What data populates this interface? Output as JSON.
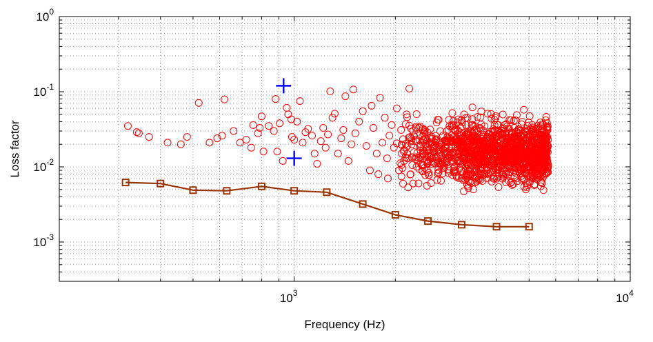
{
  "chart_data": {
    "type": "scatter",
    "title": "",
    "xlabel": "Frequency (Hz)",
    "ylabel": "Loss factor",
    "x_scale": "log",
    "y_scale": "log",
    "xlim": [
      200,
      10000
    ],
    "ylim": [
      0.0003,
      1
    ],
    "grid": "minor and major, dotted",
    "x_ticks": [
      {
        "value": 1000,
        "base": "10",
        "exp": "3"
      },
      {
        "value": 10000,
        "base": "10",
        "exp": "4"
      }
    ],
    "y_ticks": [
      {
        "value": 1,
        "base": "10",
        "exp": "0"
      },
      {
        "value": 0.1,
        "base": "10",
        "exp": "-1"
      },
      {
        "value": 0.01,
        "base": "10",
        "exp": "-2"
      },
      {
        "value": 0.001,
        "base": "10",
        "exp": "-3"
      }
    ],
    "colors": {
      "scatter": "#ff0000",
      "markers": "#0000ff",
      "line": "#993300"
    },
    "series": [
      {
        "kind": "line-square",
        "x": [
          315,
          400,
          500,
          630,
          800,
          1000,
          1250,
          1600,
          2000,
          2500,
          3150,
          4000,
          5000
        ],
        "y": [
          0.0062,
          0.006,
          0.0049,
          0.0048,
          0.0055,
          0.0048,
          0.0046,
          0.0032,
          0.0023,
          0.0019,
          0.0017,
          0.0016,
          0.0016
        ]
      },
      {
        "kind": "plus",
        "x": [
          930,
          1000
        ],
        "y": [
          0.12,
          0.013
        ]
      },
      {
        "kind": "circles",
        "x": [
          320,
          340,
          345,
          370,
          420,
          460,
          520,
          480,
          560,
          610,
          590,
          620,
          660,
          690,
          720,
          745,
          755,
          780,
          790,
          800,
          810,
          840,
          870,
          880,
          890,
          905,
          925,
          950,
          960,
          980,
          985,
          1000,
          1020,
          1040,
          1060,
          1080,
          1100,
          1130,
          1150,
          1170,
          1200,
          1220,
          1240,
          1260,
          1280,
          1300,
          1320,
          1350,
          1380,
          1400,
          1420,
          1450,
          1480,
          1500,
          1520,
          1560,
          1600,
          1640,
          1680,
          1700,
          1720,
          1760,
          1780,
          1800,
          1830,
          1860,
          1890,
          1900,
          1920,
          1950,
          1980,
          2020,
          2050,
          2080,
          2120,
          2160,
          2200,
          2230,
          2260,
          2300,
          2340,
          2380
        ],
        "y": [
          0.035,
          0.029,
          0.028,
          0.025,
          0.021,
          0.02,
          0.071,
          0.025,
          0.021,
          0.026,
          0.024,
          0.079,
          0.03,
          0.021,
          0.023,
          0.018,
          0.036,
          0.028,
          0.033,
          0.047,
          0.016,
          0.035,
          0.03,
          0.08,
          0.016,
          0.038,
          0.012,
          0.061,
          0.05,
          0.043,
          0.025,
          0.023,
          0.04,
          0.075,
          0.021,
          0.029,
          0.032,
          0.026,
          0.015,
          0.011,
          0.022,
          0.033,
          0.018,
          0.027,
          0.101,
          0.045,
          0.051,
          0.015,
          0.024,
          0.031,
          0.087,
          0.012,
          0.02,
          0.107,
          0.028,
          0.04,
          0.055,
          0.019,
          0.009,
          0.065,
          0.033,
          0.015,
          0.008,
          0.083,
          0.021,
          0.045,
          0.013,
          0.007,
          0.026,
          0.036,
          0.018,
          0.06,
          0.009,
          0.031,
          0.016,
          0.05,
          0.11,
          0.024,
          0.006,
          0.034,
          0.012,
          0.02
        ]
      }
    ]
  }
}
